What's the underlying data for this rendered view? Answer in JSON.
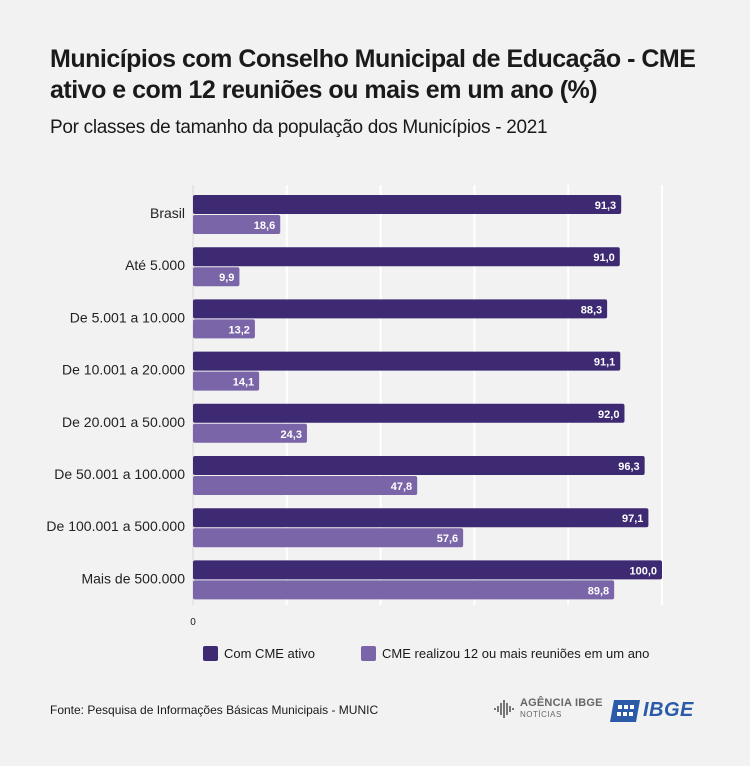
{
  "title": "Municípios com Conselho Municipal de Educação - CME ativo e com 12 reuniões ou mais em um ano (%)",
  "subtitle": "Por classes de tamanho da população dos Municípios - 2021",
  "source": "Fonte: Pesquisa de Informações Básicas Municipais - MUNIC",
  "logos": {
    "agencia_main": "AGÊNCIA IBGE",
    "agencia_sub": "NOTÍCIAS",
    "ibge": "IBGE",
    "agencia_icon": "agencia-ibge-icon",
    "ibge_icon": "ibge-logo-icon"
  },
  "chart_data": {
    "type": "bar",
    "orientation": "horizontal",
    "title": "Municípios com Conselho Municipal de Educação - CME ativo e com 12 reuniões ou mais em um ano (%)",
    "subtitle": "Por classes de tamanho da população dos Municípios - 2021",
    "categories": [
      "Brasil",
      "Até 5.000",
      "De 5.001 a 10.000",
      "De 10.001 a 20.000",
      "De 20.001 a 50.000",
      "De 50.001 a 100.000",
      "De 100.001 a 500.000",
      "Mais de 500.000"
    ],
    "series": [
      {
        "name": "Com CME ativo",
        "color": "#3d2a73",
        "values": [
          91.3,
          91.0,
          88.3,
          91.1,
          92.0,
          96.3,
          97.1,
          100.0
        ],
        "labels": [
          "91,3",
          "91,0",
          "88,3",
          "91,1",
          "92,0",
          "96,3",
          "97,1",
          "100,0"
        ]
      },
      {
        "name": "CME realizou 12 ou mais reuniões em um ano",
        "color": "#7a65a8",
        "values": [
          18.6,
          9.9,
          13.2,
          14.1,
          24.3,
          47.8,
          57.6,
          89.8
        ],
        "labels": [
          "18,6",
          "9,9",
          "13,2",
          "14,1",
          "24,3",
          "47,8",
          "57,6",
          "89,8"
        ]
      }
    ],
    "xlim": [
      0,
      100
    ],
    "x_tick_labels": [
      "0"
    ],
    "grid": true,
    "legend_position": "bottom"
  }
}
